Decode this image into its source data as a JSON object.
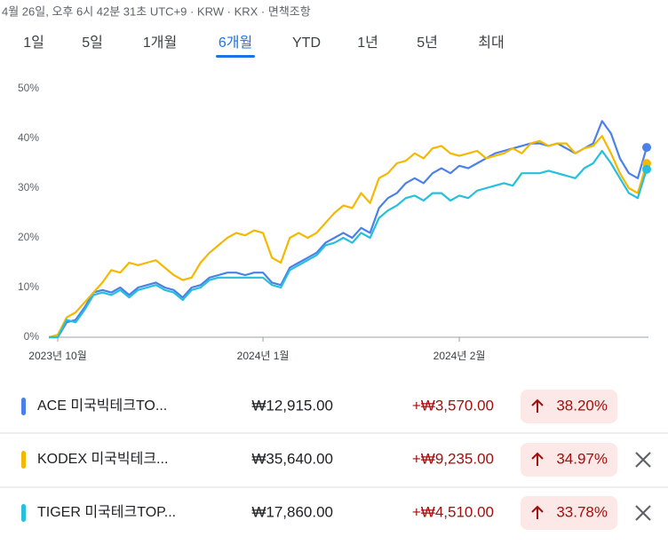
{
  "header": {
    "text": "4월 26일, 오후 6시 42분 31초 UTC+9 · KRW · KRX · 면책조항"
  },
  "tabs": {
    "items": [
      "1일",
      "5일",
      "1개월",
      "6개월",
      "YTD",
      "1년",
      "5년",
      "최대"
    ],
    "selected": 3
  },
  "chart_data": {
    "type": "line",
    "x": [
      0,
      1,
      2,
      3,
      4,
      5,
      6,
      7,
      8,
      9,
      10,
      11,
      12,
      13,
      14,
      15,
      16,
      17,
      18,
      19,
      20,
      21,
      22,
      23,
      24,
      25,
      26,
      27,
      28,
      29,
      30,
      31,
      32,
      33,
      34,
      35,
      36,
      37,
      38,
      39,
      40,
      41,
      42,
      43,
      44,
      45,
      46,
      47,
      48,
      49,
      50,
      51,
      52,
      53,
      54,
      55,
      56,
      57,
      58,
      59,
      60,
      61,
      62,
      63,
      64,
      65,
      66,
      67
    ],
    "xlim": [
      0,
      67
    ],
    "xticks": [
      {
        "value": 1,
        "label": "2023년 10월"
      },
      {
        "value": 24,
        "label": "2024년 1월"
      },
      {
        "value": 46,
        "label": "2024년 2월"
      }
    ],
    "ylim": [
      0,
      50
    ],
    "yticks": [
      {
        "value": 0,
        "label": "0%"
      },
      {
        "value": 10,
        "label": "10%"
      },
      {
        "value": 20,
        "label": "20%"
      },
      {
        "value": 30,
        "label": "30%"
      },
      {
        "value": 40,
        "label": "40%"
      },
      {
        "value": 50,
        "label": "50%"
      }
    ],
    "grid": false,
    "series": [
      {
        "name": "ACE 미국빅테크TO...",
        "color": "#4a80e8",
        "values": [
          0,
          0,
          3,
          3.5,
          6,
          9,
          9.5,
          9,
          10,
          8.5,
          10,
          10.5,
          11,
          10,
          9.5,
          8,
          10,
          10.5,
          12,
          12.5,
          13,
          13,
          12.5,
          13,
          13,
          11,
          10.5,
          14,
          15,
          16,
          17,
          19,
          20,
          21,
          20,
          22,
          21,
          26,
          28,
          29,
          31,
          32,
          31,
          33,
          34,
          33,
          34.5,
          34,
          35,
          36,
          37,
          37.5,
          38,
          38.5,
          39,
          39,
          38.5,
          39,
          38,
          37,
          38,
          39,
          43.5,
          41,
          36,
          33,
          32,
          38.2
        ]
      },
      {
        "name": "KODEX 미국빅테크...",
        "color": "#f5b800",
        "values": [
          0,
          0.5,
          4,
          5,
          7,
          9,
          11,
          13.5,
          13,
          15,
          14.5,
          15,
          15.5,
          14,
          12.5,
          11.5,
          12,
          15,
          17,
          18.5,
          20,
          21,
          20.5,
          21.5,
          21,
          16,
          15,
          20,
          21,
          20,
          21,
          23,
          25,
          26.5,
          26,
          29,
          27,
          32,
          33,
          35,
          35.5,
          37,
          36,
          38,
          38.5,
          37,
          36.5,
          37,
          37.5,
          36,
          36.5,
          37,
          38,
          37,
          39,
          39.5,
          38.5,
          39,
          39,
          37,
          38,
          38.5,
          40.5,
          37,
          33,
          30,
          29,
          34.97
        ]
      },
      {
        "name": "TIGER 미국테크TOP...",
        "color": "#26bfdc",
        "values": [
          0,
          0,
          3.5,
          3,
          5.5,
          8.5,
          9,
          8.5,
          9.5,
          8,
          9.5,
          10,
          10.5,
          9.5,
          9,
          7.5,
          9.5,
          10,
          11.5,
          12,
          12,
          12,
          12,
          12,
          12,
          10.5,
          10,
          13.5,
          14.5,
          15.5,
          16.5,
          18.5,
          19,
          20,
          19,
          21,
          20,
          24,
          25.5,
          26.5,
          28,
          28.5,
          27.5,
          29,
          29,
          27.5,
          28.5,
          28,
          29.5,
          30,
          30.5,
          31,
          30.5,
          33,
          33,
          33,
          33.5,
          33,
          32.5,
          32,
          34,
          35,
          37.5,
          35,
          32,
          29,
          28,
          33.78
        ]
      }
    ]
  },
  "rows": [
    {
      "price": "₩12,915.00",
      "change": "+₩3,570.00",
      "percent": "38.20%",
      "removable": false
    },
    {
      "price": "₩35,640.00",
      "change": "+₩9,235.00",
      "percent": "34.97%",
      "removable": true
    },
    {
      "price": "₩17,860.00",
      "change": "+₩4,510.00",
      "percent": "33.78%",
      "removable": true
    }
  ]
}
